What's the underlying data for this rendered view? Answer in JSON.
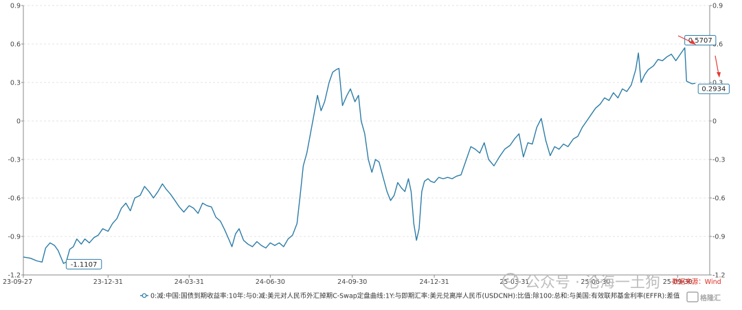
{
  "chart_data": {
    "type": "line",
    "y_axis_left": {
      "min": -1.2,
      "max": 0.9,
      "ticks": [
        "0.9",
        "0.6",
        "0.3",
        "0",
        "-0.3",
        "-0.6",
        "-0.9",
        "-1.2"
      ]
    },
    "y_axis_right": {
      "ticks": [
        "0.9",
        "0.6",
        "0.3",
        "0",
        "-0.3",
        "-0.6",
        "-0.9",
        "-1.2"
      ]
    },
    "x_ticks": [
      "23-09-27",
      "23-12-31",
      "24-03-31",
      "24-06-30",
      "24-09-30",
      "24-12-31",
      "25-03-31",
      "25-06-30",
      "25-09-30"
    ],
    "x_tick_dates": [
      "2023-09-27",
      "2023-12-31",
      "2024-03-31",
      "2024-06-30",
      "2024-09-30",
      "2024-12-31",
      "2025-03-31",
      "2025-06-30",
      "2025-09-30"
    ],
    "x_range": [
      "2023-09-27",
      "2025-11-05"
    ],
    "grid": "horizontal dashed",
    "legend_position": "bottom-center",
    "series": [
      {
        "name": "0:减:中国:国债到期收益率:10年:与0:减:美元对人民币外汇掉期C-Swap定盘曲线:1Y:与即期汇率:美元兑离岸人民币(USDCNH):比值:除100:总和:与美国:有效联邦基金利率(EFFR):差值",
        "color": "#2a7ba6",
        "points": [
          [
            "2023-09-27",
            -1.06
          ],
          [
            "2023-10-05",
            -1.07
          ],
          [
            "2023-10-12",
            -1.09
          ],
          [
            "2023-10-18",
            -1.1
          ],
          [
            "2023-10-22",
            -0.99
          ],
          [
            "2023-10-27",
            -0.95
          ],
          [
            "2023-11-01",
            -0.97
          ],
          [
            "2023-11-05",
            -1.01
          ],
          [
            "2023-11-08",
            -1.06
          ],
          [
            "2023-11-11",
            -1.11
          ],
          [
            "2023-11-14",
            -1.1
          ],
          [
            "2023-11-18",
            -1.0
          ],
          [
            "2023-11-22",
            -0.98
          ],
          [
            "2023-11-26",
            -0.92
          ],
          [
            "2023-12-01",
            -0.96
          ],
          [
            "2023-12-05",
            -0.92
          ],
          [
            "2023-12-10",
            -0.95
          ],
          [
            "2023-12-15",
            -0.91
          ],
          [
            "2023-12-20",
            -0.89
          ],
          [
            "2023-12-25",
            -0.84
          ],
          [
            "2023-12-31",
            -0.86
          ],
          [
            "2024-01-05",
            -0.8
          ],
          [
            "2024-01-10",
            -0.76
          ],
          [
            "2024-01-15",
            -0.68
          ],
          [
            "2024-01-20",
            -0.64
          ],
          [
            "2024-01-25",
            -0.7
          ],
          [
            "2024-01-30",
            -0.6
          ],
          [
            "2024-02-05",
            -0.58
          ],
          [
            "2024-02-10",
            -0.51
          ],
          [
            "2024-02-15",
            -0.55
          ],
          [
            "2024-02-20",
            -0.6
          ],
          [
            "2024-02-25",
            -0.55
          ],
          [
            "2024-03-01",
            -0.49
          ],
          [
            "2024-03-05",
            -0.53
          ],
          [
            "2024-03-10",
            -0.57
          ],
          [
            "2024-03-15",
            -0.62
          ],
          [
            "2024-03-20",
            -0.67
          ],
          [
            "2024-03-25",
            -0.71
          ],
          [
            "2024-03-31",
            -0.66
          ],
          [
            "2024-04-05",
            -0.68
          ],
          [
            "2024-04-10",
            -0.72
          ],
          [
            "2024-04-15",
            -0.64
          ],
          [
            "2024-04-20",
            -0.66
          ],
          [
            "2024-04-25",
            -0.67
          ],
          [
            "2024-04-30",
            -0.75
          ],
          [
            "2024-05-05",
            -0.78
          ],
          [
            "2024-05-10",
            -0.85
          ],
          [
            "2024-05-15",
            -0.93
          ],
          [
            "2024-05-18",
            -0.98
          ],
          [
            "2024-05-22",
            -0.88
          ],
          [
            "2024-05-26",
            -0.84
          ],
          [
            "2024-05-31",
            -0.93
          ],
          [
            "2024-06-05",
            -0.96
          ],
          [
            "2024-06-10",
            -0.98
          ],
          [
            "2024-06-15",
            -0.94
          ],
          [
            "2024-06-20",
            -0.97
          ],
          [
            "2024-06-25",
            -0.99
          ],
          [
            "2024-06-30",
            -0.95
          ],
          [
            "2024-07-05",
            -0.97
          ],
          [
            "2024-07-10",
            -0.95
          ],
          [
            "2024-07-15",
            -0.98
          ],
          [
            "2024-07-20",
            -0.92
          ],
          [
            "2024-07-25",
            -0.89
          ],
          [
            "2024-07-30",
            -0.8
          ],
          [
            "2024-08-03",
            -0.55
          ],
          [
            "2024-08-06",
            -0.35
          ],
          [
            "2024-08-10",
            -0.25
          ],
          [
            "2024-08-14",
            -0.1
          ],
          [
            "2024-08-18",
            0.05
          ],
          [
            "2024-08-22",
            0.2
          ],
          [
            "2024-08-26",
            0.08
          ],
          [
            "2024-08-30",
            0.15
          ],
          [
            "2024-09-04",
            0.3
          ],
          [
            "2024-09-08",
            0.38
          ],
          [
            "2024-09-12",
            0.4
          ],
          [
            "2024-09-15",
            0.41
          ],
          [
            "2024-09-19",
            0.12
          ],
          [
            "2024-09-24",
            0.2
          ],
          [
            "2024-09-28",
            0.25
          ],
          [
            "2024-10-03",
            0.15
          ],
          [
            "2024-10-07",
            0.2
          ],
          [
            "2024-10-10",
            0.0
          ],
          [
            "2024-10-14",
            -0.1
          ],
          [
            "2024-10-18",
            -0.3
          ],
          [
            "2024-10-22",
            -0.4
          ],
          [
            "2024-10-26",
            -0.3
          ],
          [
            "2024-10-30",
            -0.32
          ],
          [
            "2024-11-04",
            -0.45
          ],
          [
            "2024-11-08",
            -0.55
          ],
          [
            "2024-11-12",
            -0.62
          ],
          [
            "2024-11-16",
            -0.58
          ],
          [
            "2024-11-20",
            -0.48
          ],
          [
            "2024-11-24",
            -0.52
          ],
          [
            "2024-11-28",
            -0.55
          ],
          [
            "2024-12-02",
            -0.45
          ],
          [
            "2024-12-05",
            -0.55
          ],
          [
            "2024-12-08",
            -0.8
          ],
          [
            "2024-12-11",
            -0.93
          ],
          [
            "2024-12-14",
            -0.84
          ],
          [
            "2024-12-17",
            -0.55
          ],
          [
            "2024-12-20",
            -0.47
          ],
          [
            "2024-12-24",
            -0.45
          ],
          [
            "2024-12-27",
            -0.47
          ],
          [
            "2024-12-31",
            -0.48
          ],
          [
            "2025-01-05",
            -0.44
          ],
          [
            "2025-01-10",
            -0.45
          ],
          [
            "2025-01-15",
            -0.44
          ],
          [
            "2025-01-20",
            -0.45
          ],
          [
            "2025-01-25",
            -0.43
          ],
          [
            "2025-01-30",
            -0.42
          ],
          [
            "2025-02-05",
            -0.3
          ],
          [
            "2025-02-10",
            -0.2
          ],
          [
            "2025-02-15",
            -0.22
          ],
          [
            "2025-02-20",
            -0.25
          ],
          [
            "2025-02-25",
            -0.17
          ],
          [
            "2025-03-02",
            -0.3
          ],
          [
            "2025-03-08",
            -0.35
          ],
          [
            "2025-03-14",
            -0.28
          ],
          [
            "2025-03-20",
            -0.22
          ],
          [
            "2025-03-26",
            -0.19
          ],
          [
            "2025-03-31",
            -0.14
          ],
          [
            "2025-04-05",
            -0.1
          ],
          [
            "2025-04-10",
            -0.28
          ],
          [
            "2025-04-15",
            -0.17
          ],
          [
            "2025-04-20",
            -0.18
          ],
          [
            "2025-04-25",
            -0.05
          ],
          [
            "2025-04-30",
            0.02
          ],
          [
            "2025-05-05",
            -0.15
          ],
          [
            "2025-05-10",
            -0.27
          ],
          [
            "2025-05-15",
            -0.2
          ],
          [
            "2025-05-20",
            -0.22
          ],
          [
            "2025-05-25",
            -0.18
          ],
          [
            "2025-05-30",
            -0.2
          ],
          [
            "2025-06-05",
            -0.14
          ],
          [
            "2025-06-10",
            -0.12
          ],
          [
            "2025-06-15",
            -0.05
          ],
          [
            "2025-06-20",
            0.0
          ],
          [
            "2025-06-25",
            0.05
          ],
          [
            "2025-06-30",
            0.1
          ],
          [
            "2025-07-05",
            0.13
          ],
          [
            "2025-07-10",
            0.18
          ],
          [
            "2025-07-15",
            0.16
          ],
          [
            "2025-07-20",
            0.22
          ],
          [
            "2025-07-25",
            0.18
          ],
          [
            "2025-07-30",
            0.25
          ],
          [
            "2025-08-04",
            0.23
          ],
          [
            "2025-08-09",
            0.28
          ],
          [
            "2025-08-14",
            0.4
          ],
          [
            "2025-08-17",
            0.53
          ],
          [
            "2025-08-20",
            0.3
          ],
          [
            "2025-08-24",
            0.36
          ],
          [
            "2025-08-28",
            0.4
          ],
          [
            "2025-09-03",
            0.43
          ],
          [
            "2025-09-08",
            0.48
          ],
          [
            "2025-09-13",
            0.47
          ],
          [
            "2025-09-18",
            0.5
          ],
          [
            "2025-09-23",
            0.52
          ],
          [
            "2025-09-28",
            0.47
          ],
          [
            "2025-10-03",
            0.52
          ],
          [
            "2025-10-08",
            0.5707
          ],
          [
            "2025-10-10",
            0.31
          ],
          [
            "2025-10-16",
            0.29
          ],
          [
            "2025-10-20",
            0.2934
          ]
        ]
      }
    ],
    "annotations": [
      {
        "date": "2023-11-11",
        "value": -1.1107,
        "label": "-1.1107"
      },
      {
        "date": "2025-10-08",
        "value": 0.5707,
        "label": "0.5707"
      },
      {
        "date": "2025-10-20",
        "value": 0.2934,
        "label": "0.2934"
      }
    ],
    "source": "数据来源：Wind"
  },
  "watermark": {
    "account": "公众号 · 沧海一土狗",
    "logo": "格隆汇"
  }
}
